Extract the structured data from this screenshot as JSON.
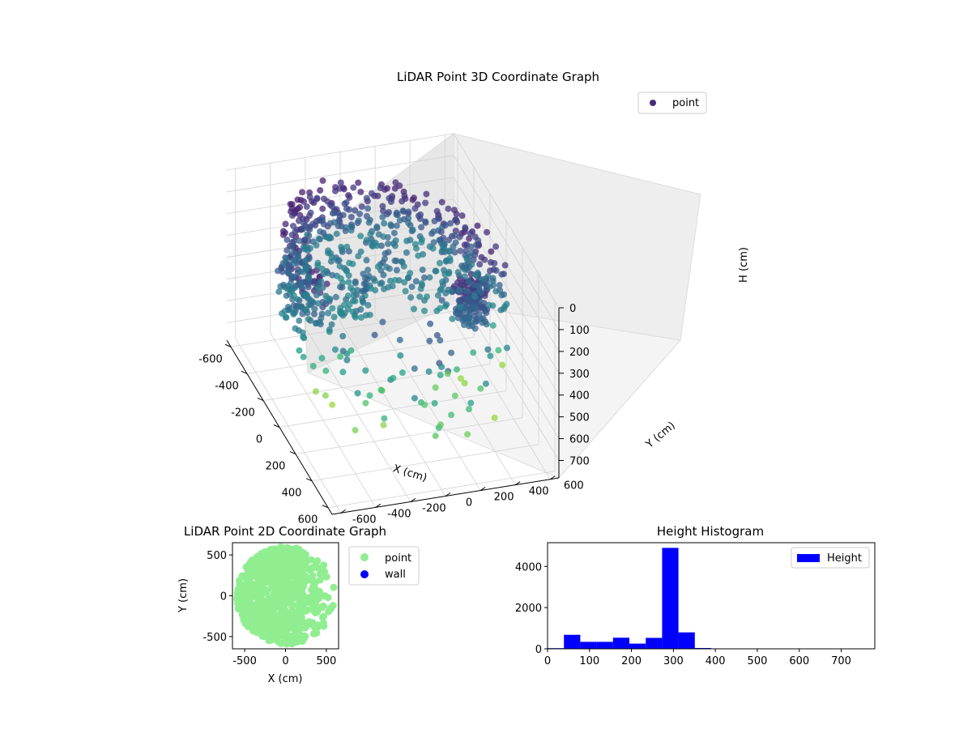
{
  "chart_data": [
    {
      "type": "scatter",
      "title": "LiDAR Point 3D Coordinate Graph",
      "xlabel": "X (cm)",
      "ylabel": "Y (cm)",
      "zlabel": "H (cm)",
      "xlim": [
        -650,
        650
      ],
      "ylim": [
        -650,
        650
      ],
      "zlim": [
        780,
        0
      ],
      "xticks": [
        -600,
        -400,
        -200,
        0,
        200,
        400,
        600
      ],
      "yticks": [
        -600,
        -400,
        -200,
        0,
        200,
        400,
        600
      ],
      "zticks": [
        0,
        100,
        200,
        300,
        400,
        500,
        600,
        700
      ],
      "colormap": "viridis",
      "legend": {
        "placement": "upper-right",
        "entries": [
          {
            "label": "point",
            "color": "#472c7a"
          }
        ]
      },
      "grid": true
    },
    {
      "type": "scatter",
      "title": "LiDAR Point 2D Coordinate Graph",
      "xlabel": "X (cm)",
      "ylabel": "Y (cm)",
      "xlim": [
        -650,
        650
      ],
      "ylim": [
        -650,
        650
      ],
      "xticks": [
        -500,
        0,
        500
      ],
      "yticks": [
        -500,
        0,
        500
      ],
      "series": [
        {
          "name": "point",
          "color": "#90ee90"
        },
        {
          "name": "wall",
          "color": "#0000ff"
        }
      ],
      "legend": {
        "placement": "outside-right"
      }
    },
    {
      "type": "bar",
      "title": "Height Histogram",
      "xlim": [
        0,
        780
      ],
      "ylim": [
        0,
        5150
      ],
      "xticks": [
        0,
        100,
        200,
        300,
        400,
        500,
        600,
        700
      ],
      "yticks": [
        0,
        2000,
        4000
      ],
      "bin_edges": [
        0,
        39,
        78,
        117,
        156,
        195,
        234,
        273,
        312,
        351,
        390,
        429,
        468,
        507,
        546,
        585,
        624,
        663,
        702,
        741,
        780
      ],
      "values": [
        30,
        680,
        340,
        340,
        540,
        250,
        530,
        4900,
        800,
        40,
        10,
        5,
        5,
        5,
        5,
        5,
        5,
        5,
        5,
        5
      ],
      "color": "#0000ff",
      "legend": {
        "placement": "upper-right",
        "entries": [
          {
            "label": "Height",
            "color": "#0000ff"
          }
        ]
      }
    }
  ]
}
